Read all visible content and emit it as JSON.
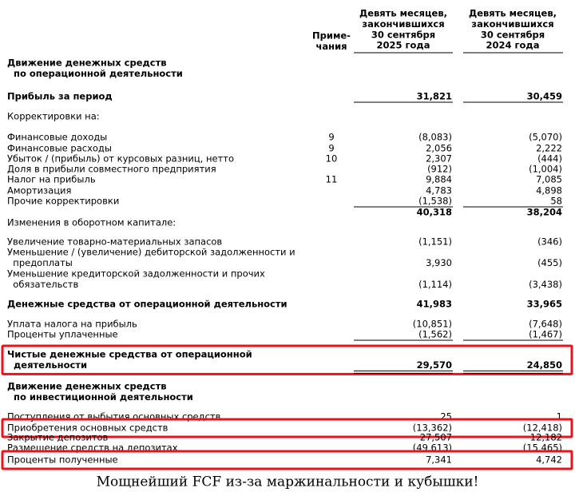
{
  "header": {
    "notes": [
      "Приме-",
      "чания"
    ],
    "col1": [
      "Девять месяцев,",
      "закончившихся",
      "30 сентября",
      "2025 года"
    ],
    "col2": [
      "Девять месяцев,",
      "закончившихся",
      "30 сентября",
      "2024 года"
    ]
  },
  "rows": [
    {
      "label": [
        "Движение денежных средств",
        "  по операционной деятельности"
      ],
      "bold": true
    },
    {
      "label": [
        "Прибыль за период"
      ],
      "bold": true,
      "col1": "31,821",
      "col2": "30,459",
      "underline": "single"
    },
    {
      "label": [
        "Корректировки на:"
      ]
    },
    {
      "label": [
        "Финансовые доходы"
      ],
      "note": "9",
      "col1": "(8,083)",
      "col2": "(5,070)"
    },
    {
      "label": [
        "Финансовые расходы"
      ],
      "note": "9",
      "col1": "2,056",
      "col2": "2,222"
    },
    {
      "label": [
        "Убыток / (прибыль) от курсовых разниц, нетто"
      ],
      "note": "10",
      "col1": "2,307",
      "col2": "(444)"
    },
    {
      "label": [
        "Доля в прибыли совместного предприятия"
      ],
      "col1": "(912)",
      "col2": "(1,004)"
    },
    {
      "label": [
        "Налог на прибыль"
      ],
      "note": "11",
      "col1": "9,884",
      "col2": "7,085"
    },
    {
      "label": [
        "Амортизация"
      ],
      "col1": "4,783",
      "col2": "4,898"
    },
    {
      "label": [
        "Прочие корректировки"
      ],
      "col1": "(1,538)",
      "col2": "58",
      "underline": "single"
    },
    {
      "bold": true,
      "col1": "40,318",
      "col2": "38,204"
    },
    {
      "label": [
        "Изменения в оборотном капитале:"
      ]
    },
    {
      "label": [
        "Увеличение товарно-материальных запасов"
      ],
      "col1": "(1,151)",
      "col2": "(346)"
    },
    {
      "label": [
        "Уменьшение / (увеличение) дебиторской задолженности и",
        "  предоплаты"
      ],
      "col1": "3,930",
      "col2": "(455)"
    },
    {
      "label": [
        "Уменьшение кредиторской задолженности и прочих",
        "  обязательств"
      ],
      "col1": "(1,114)",
      "col2": "(3,438)"
    },
    {
      "label": [
        "Денежные средства от операционной деятельности"
      ],
      "bold": true,
      "col1": "41,983",
      "col2": "33,965"
    },
    {
      "label": [
        "Уплата налога на прибыль"
      ],
      "col1": "(10,851)",
      "col2": "(7,648)"
    },
    {
      "label": [
        "Проценты уплаченные"
      ],
      "col1": "(1,562)",
      "col2": "(1,467)",
      "underline": "single"
    },
    {
      "label": [
        "Чистые денежные средства от операционной",
        "  деятельности"
      ],
      "bold": true,
      "col1": "29,570",
      "col2": "24,850",
      "underline": "double",
      "highlighted": true
    },
    {
      "label": [
        "Движение денежных средств",
        "  по инвестиционной деятельности"
      ],
      "bold": true
    },
    {
      "label": [
        "Поступления от выбытия основных средств"
      ],
      "col1": "25",
      "col2": "1"
    },
    {
      "label": [
        "Приобретения основных средств"
      ],
      "col1": "(13,362)",
      "col2": "(12,418)",
      "highlighted": true
    },
    {
      "label": [
        "Закрытие депозитов"
      ],
      "col1": "27,507",
      "col2": "12,182"
    },
    {
      "label": [
        "Размещение средств на депозитах"
      ],
      "col1": "(49,613)",
      "col2": "(15,465)"
    },
    {
      "label": [
        "Проценты полученные"
      ],
      "col1": "7,341",
      "col2": "4,742",
      "highlighted": true
    }
  ],
  "caption": "Мощнейший FCF из-за маржинальности и кубышки!"
}
